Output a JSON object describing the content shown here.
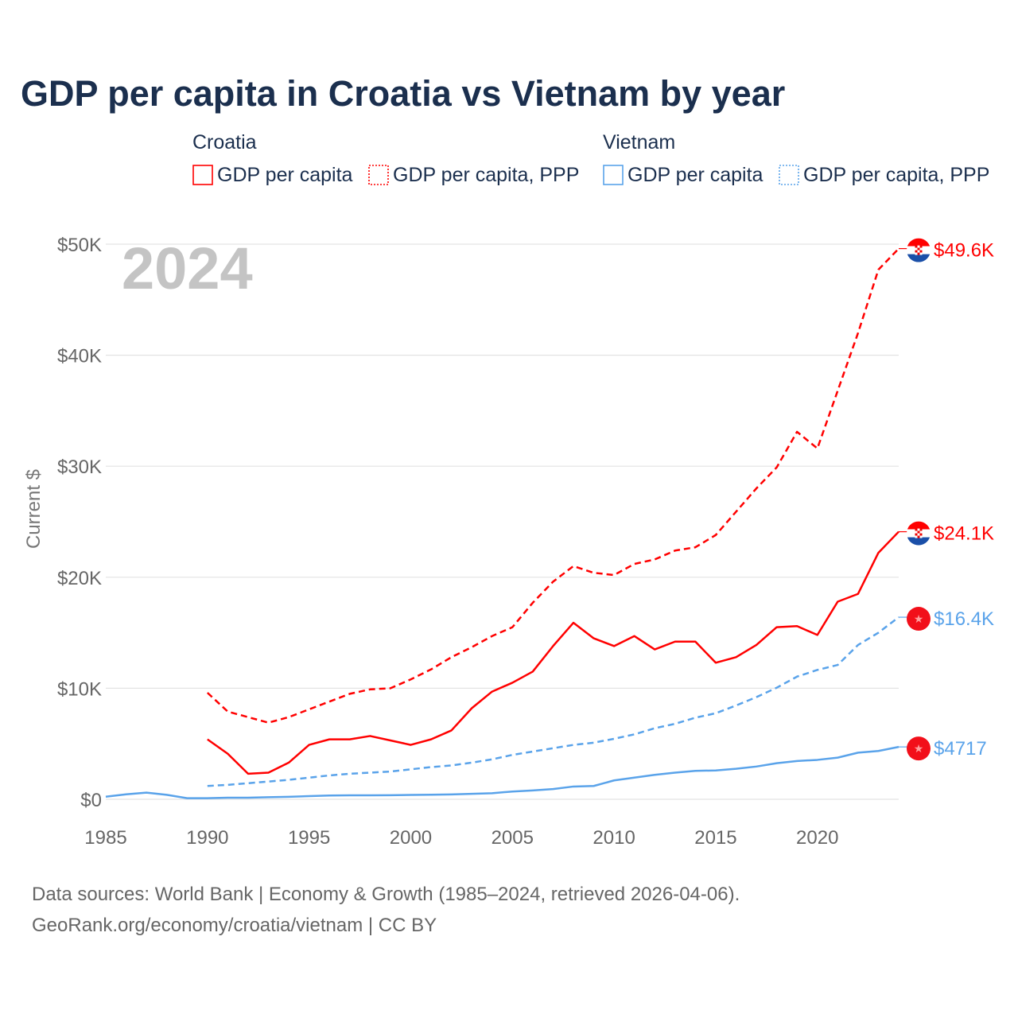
{
  "chart_data": {
    "type": "line",
    "title": "GDP per capita in Croatia vs Vietnam by year",
    "ylabel": "Current $",
    "xlabel": "",
    "xlim": [
      1985,
      2024
    ],
    "ylim": [
      0,
      50000
    ],
    "x_ticks": [
      "1985",
      "1990",
      "1995",
      "2000",
      "2005",
      "2010",
      "2015",
      "2020"
    ],
    "y_ticks": [
      {
        "v": 0,
        "label": "$0"
      },
      {
        "v": 10000,
        "label": "$10K"
      },
      {
        "v": 20000,
        "label": "$20K"
      },
      {
        "v": 30000,
        "label": "$30K"
      },
      {
        "v": 40000,
        "label": "$40K"
      },
      {
        "v": 50000,
        "label": "$50K"
      }
    ],
    "grid": true,
    "year_watermark": "2024",
    "legend": {
      "placement": "top",
      "groups": [
        {
          "country": "Croatia",
          "items": [
            "GDP per capita",
            "GDP per capita, PPP"
          ],
          "color": "#ff0000"
        },
        {
          "country": "Vietnam",
          "items": [
            "GDP per capita",
            "GDP per capita, PPP"
          ],
          "color": "#5aa3ea"
        }
      ]
    },
    "series": [
      {
        "name": "Croatia GDP per capita",
        "color": "#ff0000",
        "dash": false,
        "flag": "croatia",
        "end_label": "$24.1K",
        "start": 1990,
        "values": [
          5400,
          4100,
          2300,
          2400,
          3300,
          4900,
          5400,
          5400,
          5700,
          5300,
          4900,
          5400,
          6200,
          8200,
          9700,
          10500,
          11500,
          13800,
          15900,
          14500,
          13800,
          14700,
          13500,
          14200,
          14200,
          12300,
          12800,
          13900,
          15500,
          15600,
          14800,
          17800,
          18500,
          22200,
          24100
        ]
      },
      {
        "name": "Croatia GDP per capita, PPP",
        "color": "#ff0000",
        "dash": true,
        "flag": "croatia",
        "end_label": "$49.6K",
        "start": 1990,
        "values": [
          9600,
          7900,
          7400,
          6900,
          7400,
          8100,
          8800,
          9500,
          9900,
          10000,
          10800,
          11700,
          12800,
          13700,
          14700,
          15500,
          17700,
          19600,
          21000,
          20400,
          20200,
          21200,
          21600,
          22400,
          22700,
          23800,
          25900,
          28000,
          29900,
          33100,
          31600,
          36800,
          42000,
          47700,
          49600
        ]
      },
      {
        "name": "Vietnam GDP per capita",
        "color": "#5aa3ea",
        "dash": false,
        "flag": "vietnam",
        "end_label": "$4717",
        "start": 1985,
        "values": [
          230,
          450,
          600,
          400,
          100,
          100,
          140,
          140,
          190,
          220,
          290,
          340,
          360,
          360,
          370,
          390,
          410,
          440,
          490,
          550,
          700,
          800,
          920,
          1150,
          1200,
          1700,
          1950,
          2200,
          2400,
          2560,
          2600,
          2750,
          2950,
          3250,
          3450,
          3550,
          3750,
          4200,
          4350,
          4717
        ]
      },
      {
        "name": "Vietnam GDP per capita, PPP",
        "color": "#5aa3ea",
        "dash": true,
        "flag": "vietnam",
        "end_label": "$16.4K",
        "start": 1990,
        "values": [
          1200,
          1300,
          1450,
          1600,
          1750,
          1950,
          2150,
          2300,
          2400,
          2500,
          2700,
          2900,
          3050,
          3300,
          3600,
          4000,
          4300,
          4600,
          4900,
          5100,
          5450,
          5850,
          6400,
          6800,
          7350,
          7750,
          8450,
          9200,
          10050,
          11050,
          11650,
          12100,
          13900,
          15000,
          16400
        ]
      }
    ]
  },
  "footer": {
    "line1": "Data sources: World Bank | Economy & Growth (1985–2024, retrieved 2026-04-06).",
    "line2": "GeoRank.org/economy/croatia/vietnam | CC BY"
  }
}
